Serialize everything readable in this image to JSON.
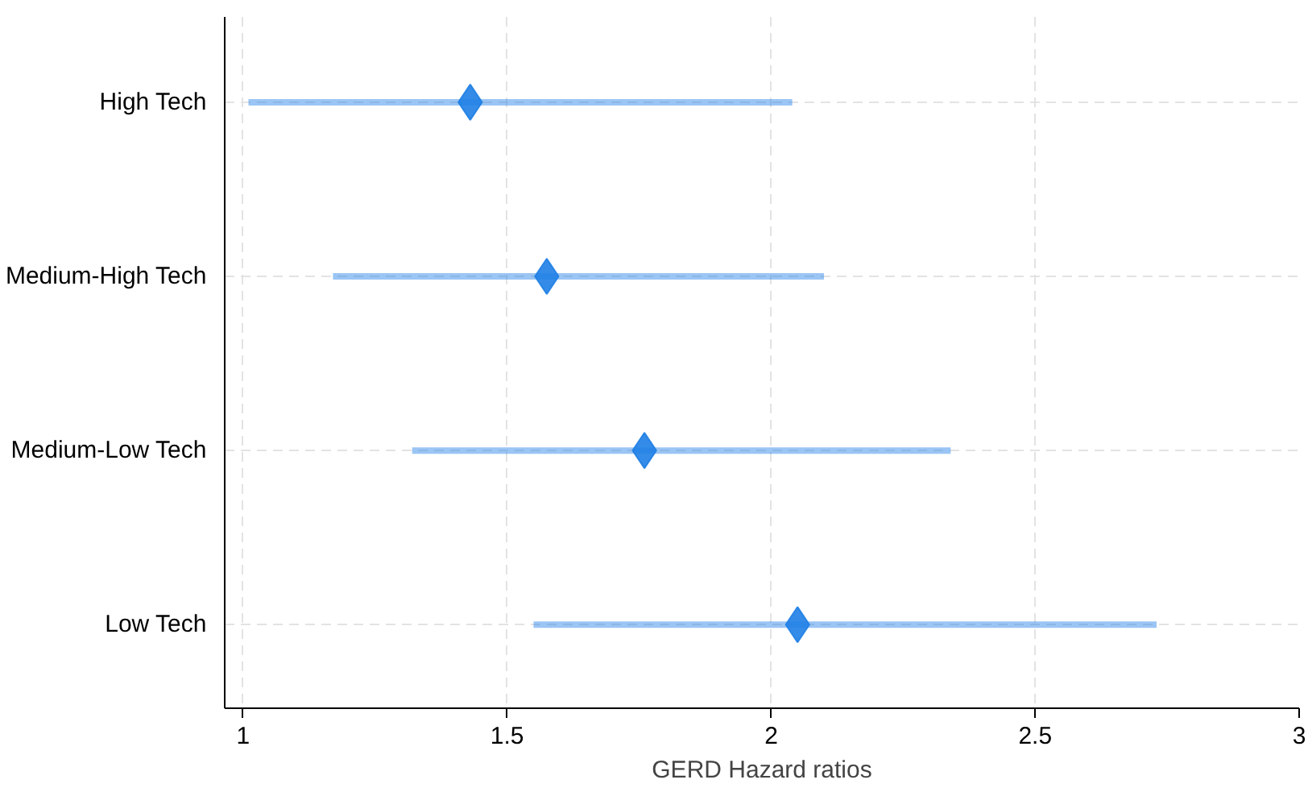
{
  "chart_data": {
    "type": "scatter",
    "orientation": "horizontal",
    "xlabel": "GERD Hazard ratios",
    "categories": [
      "High Tech",
      "Medium-High Tech",
      "Medium-Low Tech",
      "Low Tech"
    ],
    "values": [
      1.43,
      1.575,
      1.76,
      2.05
    ],
    "errors": [
      [
        1.01,
        2.04
      ],
      [
        1.17,
        2.1
      ],
      [
        1.32,
        2.34
      ],
      [
        1.55,
        2.73
      ]
    ],
    "color": "#1f7fe6",
    "marker": "diamond",
    "xlim": [
      0.965,
      3.0
    ],
    "xticks": [
      1,
      1.5,
      2,
      2.5,
      3
    ],
    "grid": true
  }
}
